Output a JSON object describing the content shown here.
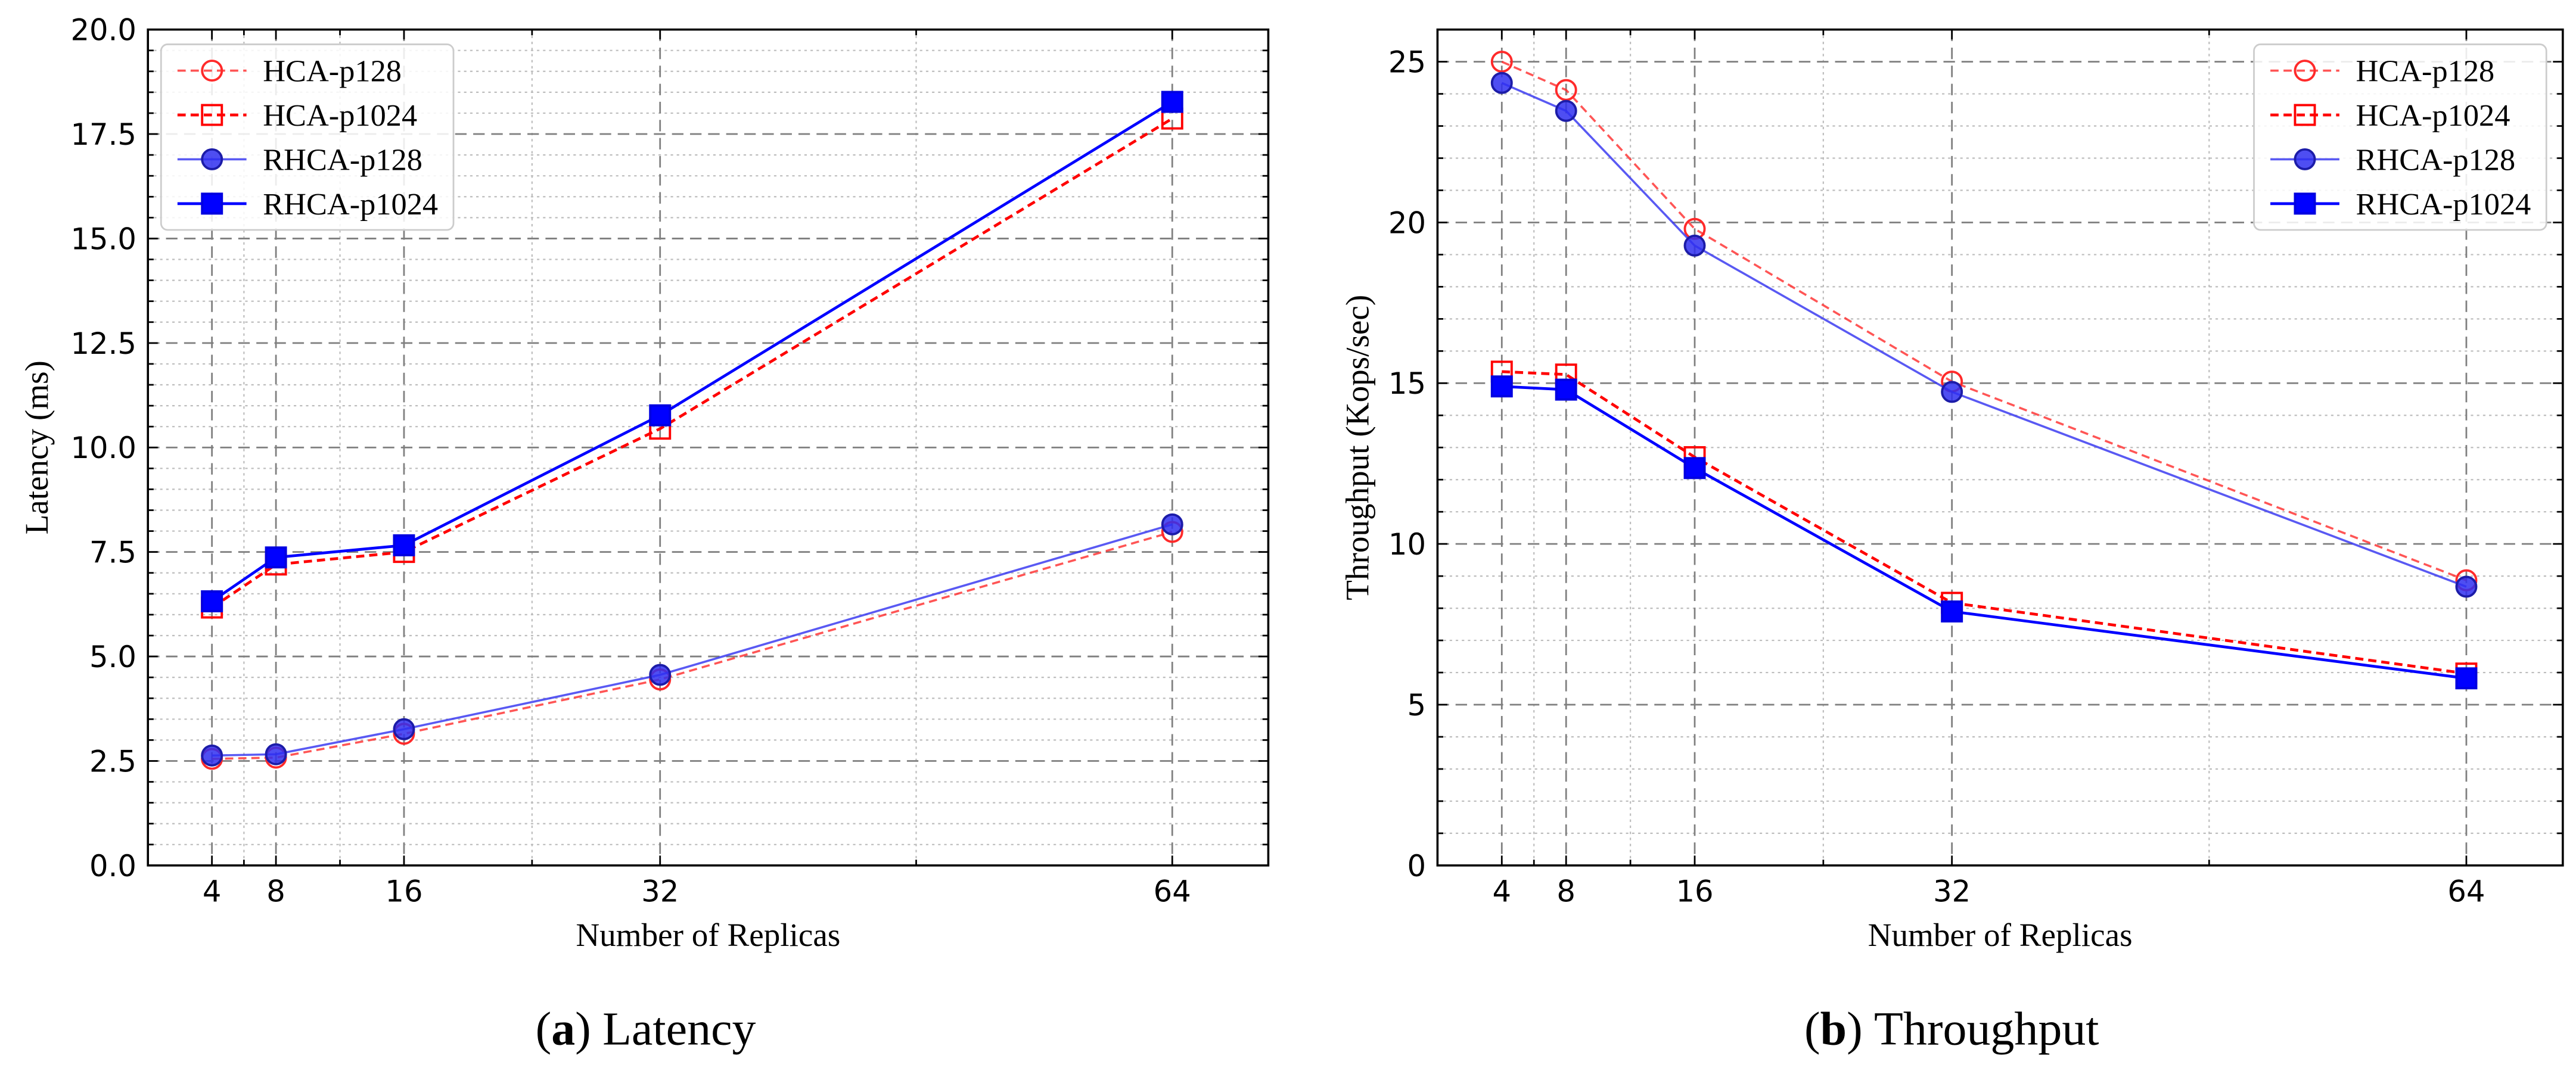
{
  "figure": {
    "captions": [
      {
        "open": "(",
        "label": "a",
        "close": ")",
        "text": "Latency"
      },
      {
        "open": "(",
        "label": "b",
        "close": ")",
        "text": "Throughput"
      }
    ]
  },
  "chart_data": [
    {
      "type": "line",
      "title": "",
      "xlabel": "Number of Replicas",
      "ylabel": "Latency (ms)",
      "xlim": [
        0,
        70
      ],
      "ylim": [
        0,
        20
      ],
      "xticks": [
        4,
        8,
        16,
        32,
        64
      ],
      "xtick_labels": [
        "4",
        "8",
        "16",
        "32",
        "64"
      ],
      "xminor": [
        6,
        12,
        24,
        48
      ],
      "yticks": [
        0,
        2.5,
        5,
        7.5,
        10,
        12.5,
        15,
        17.5,
        20
      ],
      "ytick_labels": [
        "0.0",
        "2.5",
        "5.0",
        "7.5",
        "10.0",
        "12.5",
        "15.0",
        "17.5",
        "20.0"
      ],
      "yminor_step": 0.5,
      "grid": true,
      "legend": "upper left",
      "x": [
        4,
        8,
        16,
        32,
        64
      ],
      "series": [
        {
          "name": "HCA-p128",
          "values": [
            2.55,
            2.58,
            3.15,
            4.45,
            7.98
          ],
          "color": "#ff2a2a",
          "edge": "#ff2a2a",
          "dashed": true,
          "filled": false,
          "marker": "circle-icon",
          "alpha": 0.8
        },
        {
          "name": "HCA-p1024",
          "values": [
            6.17,
            7.2,
            7.5,
            10.45,
            17.87
          ],
          "color": "#ff0000",
          "edge": "#ff0000",
          "dashed": true,
          "filled": false,
          "marker": "square-icon",
          "alpha": 1
        },
        {
          "name": "RHCA-p128",
          "values": [
            2.63,
            2.66,
            3.26,
            4.56,
            8.16
          ],
          "color": "#2f2ff0",
          "edge": "#1c1ca8",
          "dashed": false,
          "filled": true,
          "marker": "circle-icon",
          "alpha": 0.8
        },
        {
          "name": "RHCA-p1024",
          "values": [
            6.32,
            7.37,
            7.66,
            10.77,
            18.27
          ],
          "color": "#0000ff",
          "edge": "#0000e0",
          "dashed": false,
          "filled": true,
          "marker": "square-icon",
          "alpha": 1
        }
      ]
    },
    {
      "type": "line",
      "title": "",
      "xlabel": "Number of Replicas",
      "ylabel": "Throughput (Kops/sec)",
      "xlim": [
        0,
        70
      ],
      "ylim": [
        0,
        26
      ],
      "xticks": [
        4,
        8,
        16,
        32,
        64
      ],
      "xtick_labels": [
        "4",
        "8",
        "16",
        "32",
        "64"
      ],
      "xminor": [
        6,
        12,
        24,
        48
      ],
      "yticks": [
        0,
        5,
        10,
        15,
        20,
        25
      ],
      "ytick_labels": [
        "0",
        "5",
        "10",
        "15",
        "20",
        "25"
      ],
      "yminor_step": 1,
      "grid": true,
      "legend": "upper right",
      "x": [
        4,
        8,
        16,
        32,
        64
      ],
      "series": [
        {
          "name": "HCA-p128",
          "values": [
            25.0,
            24.12,
            19.8,
            15.05,
            8.87
          ],
          "color": "#ff2a2a",
          "edge": "#ff2a2a",
          "dashed": true,
          "filled": false,
          "marker": "circle-icon",
          "alpha": 0.8
        },
        {
          "name": "HCA-p1024",
          "values": [
            15.36,
            15.27,
            12.7,
            8.17,
            5.97
          ],
          "color": "#ff0000",
          "edge": "#ff0000",
          "dashed": true,
          "filled": false,
          "marker": "square-icon",
          "alpha": 1
        },
        {
          "name": "RHCA-p128",
          "values": [
            24.34,
            23.47,
            19.28,
            14.73,
            8.67
          ],
          "color": "#2f2ff0",
          "edge": "#1c1ca8",
          "dashed": false,
          "filled": true,
          "marker": "circle-icon",
          "alpha": 0.8
        },
        {
          "name": "RHCA-p1024",
          "values": [
            14.9,
            14.8,
            12.36,
            7.9,
            5.82
          ],
          "color": "#0000ff",
          "edge": "#0000e0",
          "dashed": false,
          "filled": true,
          "marker": "square-icon",
          "alpha": 1
        }
      ]
    }
  ]
}
